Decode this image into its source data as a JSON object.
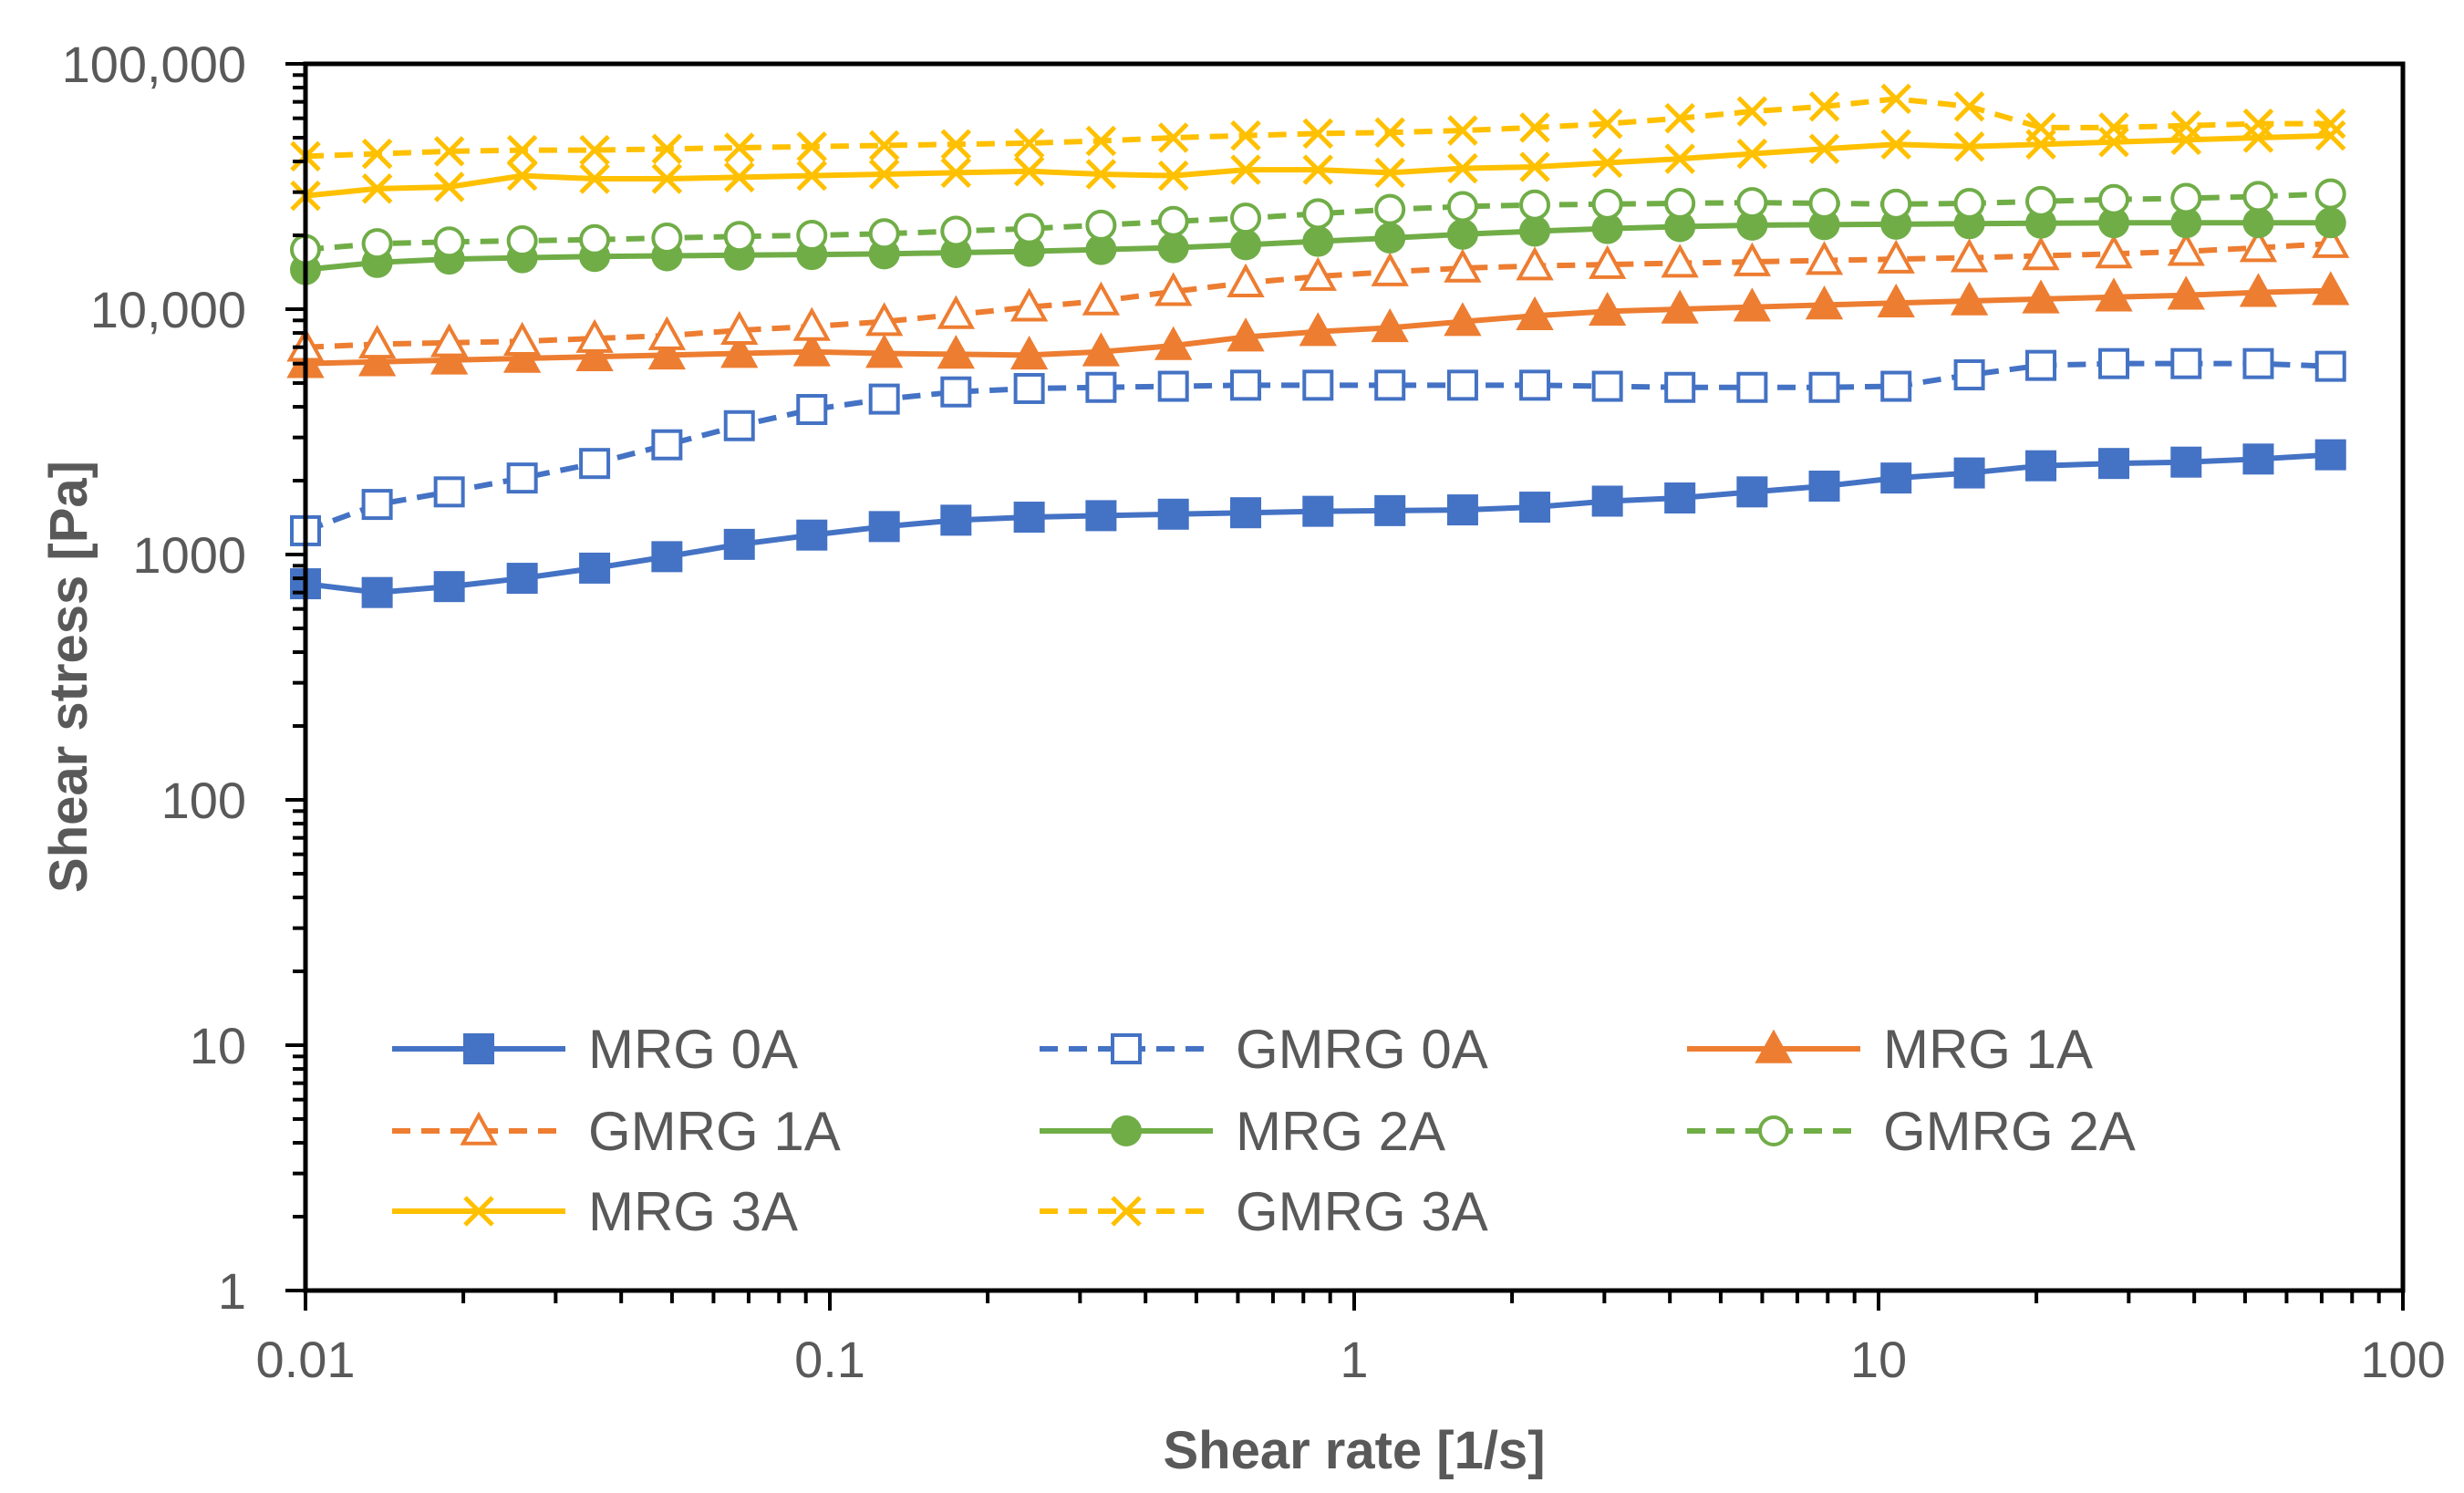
{
  "chart_data": {
    "type": "line",
    "xscale": "log",
    "yscale": "log",
    "xlabel": "Shear rate [1/s]",
    "ylabel": "Shear stress [Pa]",
    "xlim": [
      0.01,
      100
    ],
    "ylim": [
      1,
      100000
    ],
    "x_ticks": [
      {
        "value": 0.01,
        "label": "0.01"
      },
      {
        "value": 0.1,
        "label": "0.1"
      },
      {
        "value": 1,
        "label": "1"
      },
      {
        "value": 10,
        "label": "10"
      },
      {
        "value": 100,
        "label": "100"
      }
    ],
    "y_ticks": [
      {
        "value": 1,
        "label": "1"
      },
      {
        "value": 10,
        "label": "10"
      },
      {
        "value": 100,
        "label": "100"
      },
      {
        "value": 1000,
        "label": "1000"
      },
      {
        "value": 10000,
        "label": "10,000"
      },
      {
        "value": 100000,
        "label": "100,000"
      }
    ],
    "x": [
      0.01,
      0.0137,
      0.0188,
      0.0259,
      0.0356,
      0.0489,
      0.0672,
      0.0924,
      0.127,
      0.174,
      0.24,
      0.329,
      0.452,
      0.621,
      0.853,
      1.17,
      1.61,
      2.21,
      3.04,
      4.18,
      5.74,
      7.88,
      10.8,
      14.9,
      20.4,
      28.1,
      38.6,
      53.0,
      72.8
    ],
    "series": [
      {
        "name": "MRG 0A",
        "color": "#4472C4",
        "dash": "solid",
        "marker": "square-filled",
        "values": [
          760,
          700,
          740,
          800,
          880,
          980,
          1100,
          1200,
          1300,
          1380,
          1420,
          1440,
          1460,
          1480,
          1500,
          1510,
          1520,
          1560,
          1650,
          1700,
          1800,
          1900,
          2050,
          2150,
          2300,
          2350,
          2380,
          2450,
          2550
        ]
      },
      {
        "name": "GMRG 0A",
        "color": "#4472C4",
        "dash": "dashed",
        "marker": "square-open",
        "values": [
          1250,
          1600,
          1800,
          2050,
          2350,
          2800,
          3350,
          3900,
          4300,
          4600,
          4750,
          4800,
          4850,
          4900,
          4900,
          4900,
          4900,
          4900,
          4850,
          4800,
          4800,
          4800,
          4850,
          5400,
          5900,
          6000,
          6000,
          6000,
          5850
        ]
      },
      {
        "name": "MRG 1A",
        "color": "#ED7D31",
        "dash": "solid",
        "marker": "triangle-filled",
        "values": [
          6000,
          6100,
          6200,
          6300,
          6400,
          6500,
          6600,
          6700,
          6600,
          6550,
          6500,
          6700,
          7100,
          7700,
          8100,
          8400,
          8900,
          9400,
          9800,
          10000,
          10200,
          10400,
          10600,
          10800,
          11000,
          11200,
          11400,
          11700,
          11900
        ]
      },
      {
        "name": "GMRG 1A",
        "color": "#ED7D31",
        "dash": "dashed",
        "marker": "triangle-open",
        "values": [
          7000,
          7200,
          7300,
          7400,
          7600,
          7800,
          8200,
          8500,
          8900,
          9500,
          10200,
          10800,
          11800,
          12800,
          13600,
          14200,
          14700,
          15000,
          15200,
          15400,
          15600,
          15800,
          16000,
          16200,
          16500,
          16800,
          17200,
          17800,
          18500
        ]
      },
      {
        "name": "MRG 2A",
        "color": "#70AD47",
        "dash": "solid",
        "marker": "circle-filled",
        "values": [
          14500,
          15500,
          16000,
          16200,
          16400,
          16500,
          16600,
          16700,
          16800,
          17000,
          17200,
          17500,
          17800,
          18300,
          18900,
          19500,
          20200,
          20800,
          21300,
          21700,
          22000,
          22100,
          22200,
          22300,
          22400,
          22500,
          22500,
          22500,
          22500
        ]
      },
      {
        "name": "GMRG 2A",
        "color": "#70AD47",
        "dash": "dashed",
        "marker": "circle-open",
        "values": [
          17500,
          18500,
          18800,
          19000,
          19200,
          19500,
          19800,
          20000,
          20300,
          20800,
          21300,
          22000,
          22800,
          23500,
          24500,
          25500,
          26200,
          26600,
          26800,
          27000,
          27200,
          27000,
          26800,
          27000,
          27500,
          28000,
          28300,
          28800,
          29500
        ]
      },
      {
        "name": "MRG 3A",
        "color": "#FFC000",
        "dash": "solid",
        "marker": "x",
        "values": [
          29000,
          31000,
          31500,
          35000,
          34000,
          34000,
          34500,
          35000,
          35500,
          36000,
          36500,
          35500,
          35000,
          37000,
          37000,
          36000,
          37500,
          38000,
          39500,
          41000,
          43000,
          45000,
          47000,
          46000,
          47000,
          48000,
          49000,
          50000,
          51000
        ]
      },
      {
        "name": "GMRG 3A",
        "color": "#FFC000",
        "dash": "dashed",
        "marker": "x",
        "values": [
          42000,
          43000,
          44000,
          44500,
          44500,
          45000,
          45500,
          46000,
          46500,
          47000,
          47500,
          48500,
          50000,
          51000,
          52000,
          52500,
          53500,
          55000,
          57000,
          60000,
          64000,
          67000,
          72000,
          67000,
          55000,
          55000,
          56000,
          57000,
          57000
        ]
      }
    ],
    "legend": {
      "placement": "bottom-inside",
      "columns": 3
    },
    "grid": false
  }
}
